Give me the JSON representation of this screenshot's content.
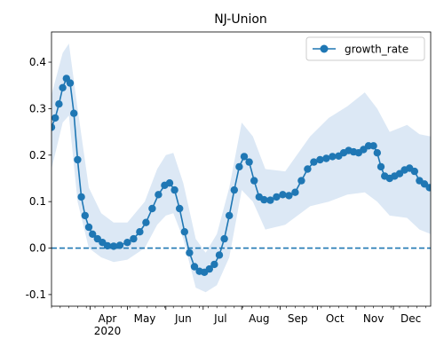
{
  "chart_data": {
    "type": "line",
    "title": "NJ-Union",
    "xlabel": "",
    "ylabel": "",
    "x_tick_labels": [
      "Apr",
      "May",
      "Jun",
      "Jul",
      "Aug",
      "Sep",
      "Oct",
      "Nov",
      "Dec"
    ],
    "x_year_label": "2020",
    "y_tick_labels": [
      "-0.1",
      "0.0",
      "0.1",
      "0.2",
      "0.3",
      "0.4"
    ],
    "y_ticks": [
      -0.1,
      0.0,
      0.1,
      0.2,
      0.3,
      0.4
    ],
    "ylim": [
      -0.125,
      0.465
    ],
    "xlim": [
      "2020-03-01",
      "2020-12-31"
    ],
    "legend_position": "top-right",
    "reference_line": {
      "y": 0.0,
      "style": "dashed"
    },
    "colors": {
      "series": "#1f77b4",
      "band": "#dce8f5"
    },
    "series": [
      {
        "name": "growth_rate",
        "marker": "circle",
        "points": [
          [
            "2020-03-01",
            0.26
          ],
          [
            "2020-03-04",
            0.28
          ],
          [
            "2020-03-07",
            0.31
          ],
          [
            "2020-03-10",
            0.345
          ],
          [
            "2020-03-13",
            0.365
          ],
          [
            "2020-03-16",
            0.355
          ],
          [
            "2020-03-19",
            0.29
          ],
          [
            "2020-03-22",
            0.19
          ],
          [
            "2020-03-25",
            0.11
          ],
          [
            "2020-03-28",
            0.07
          ],
          [
            "2020-03-31",
            0.045
          ],
          [
            "2020-04-03",
            0.03
          ],
          [
            "2020-04-07",
            0.02
          ],
          [
            "2020-04-11",
            0.012
          ],
          [
            "2020-04-15",
            0.005
          ],
          [
            "2020-04-20",
            0.004
          ],
          [
            "2020-04-25",
            0.006
          ],
          [
            "2020-05-01",
            0.012
          ],
          [
            "2020-05-06",
            0.02
          ],
          [
            "2020-05-11",
            0.035
          ],
          [
            "2020-05-16",
            0.055
          ],
          [
            "2020-05-21",
            0.085
          ],
          [
            "2020-05-26",
            0.115
          ],
          [
            "2020-05-31",
            0.135
          ],
          [
            "2020-06-04",
            0.14
          ],
          [
            "2020-06-08",
            0.125
          ],
          [
            "2020-06-12",
            0.085
          ],
          [
            "2020-06-16",
            0.035
          ],
          [
            "2020-06-20",
            -0.01
          ],
          [
            "2020-06-24",
            -0.04
          ],
          [
            "2020-06-28",
            -0.05
          ],
          [
            "2020-07-02",
            -0.052
          ],
          [
            "2020-07-06",
            -0.045
          ],
          [
            "2020-07-10",
            -0.035
          ],
          [
            "2020-07-14",
            -0.015
          ],
          [
            "2020-07-18",
            0.02
          ],
          [
            "2020-07-22",
            0.07
          ],
          [
            "2020-07-26",
            0.125
          ],
          [
            "2020-07-30",
            0.175
          ],
          [
            "2020-08-03",
            0.197
          ],
          [
            "2020-08-07",
            0.185
          ],
          [
            "2020-08-11",
            0.145
          ],
          [
            "2020-08-15",
            0.11
          ],
          [
            "2020-08-19",
            0.104
          ],
          [
            "2020-08-24",
            0.103
          ],
          [
            "2020-08-29",
            0.11
          ],
          [
            "2020-09-03",
            0.115
          ],
          [
            "2020-09-08",
            0.113
          ],
          [
            "2020-09-13",
            0.12
          ],
          [
            "2020-09-18",
            0.145
          ],
          [
            "2020-09-23",
            0.17
          ],
          [
            "2020-09-28",
            0.185
          ],
          [
            "2020-10-03",
            0.19
          ],
          [
            "2020-10-08",
            0.193
          ],
          [
            "2020-10-13",
            0.197
          ],
          [
            "2020-10-18",
            0.198
          ],
          [
            "2020-10-22",
            0.205
          ],
          [
            "2020-10-26",
            0.21
          ],
          [
            "2020-10-30",
            0.207
          ],
          [
            "2020-11-03",
            0.205
          ],
          [
            "2020-11-07",
            0.212
          ],
          [
            "2020-11-11",
            0.22
          ],
          [
            "2020-11-15",
            0.22
          ],
          [
            "2020-11-18",
            0.205
          ],
          [
            "2020-11-21",
            0.175
          ],
          [
            "2020-11-24",
            0.155
          ],
          [
            "2020-11-28",
            0.15
          ],
          [
            "2020-12-02",
            0.155
          ],
          [
            "2020-12-06",
            0.16
          ],
          [
            "2020-12-10",
            0.168
          ],
          [
            "2020-12-14",
            0.172
          ],
          [
            "2020-12-18",
            0.165
          ],
          [
            "2020-12-22",
            0.145
          ],
          [
            "2020-12-26",
            0.138
          ],
          [
            "2020-12-30",
            0.13
          ]
        ],
        "band_upper": [
          [
            "2020-03-01",
            0.33
          ],
          [
            "2020-03-10",
            0.42
          ],
          [
            "2020-03-15",
            0.44
          ],
          [
            "2020-03-22",
            0.3
          ],
          [
            "2020-03-31",
            0.13
          ],
          [
            "2020-04-10",
            0.075
          ],
          [
            "2020-04-20",
            0.055
          ],
          [
            "2020-05-01",
            0.055
          ],
          [
            "2020-05-15",
            0.1
          ],
          [
            "2020-05-25",
            0.17
          ],
          [
            "2020-06-01",
            0.2
          ],
          [
            "2020-06-07",
            0.205
          ],
          [
            "2020-06-15",
            0.14
          ],
          [
            "2020-06-25",
            0.02
          ],
          [
            "2020-07-03",
            -0.01
          ],
          [
            "2020-07-12",
            0.03
          ],
          [
            "2020-07-22",
            0.13
          ],
          [
            "2020-08-01",
            0.27
          ],
          [
            "2020-08-10",
            0.24
          ],
          [
            "2020-08-20",
            0.17
          ],
          [
            "2020-09-05",
            0.165
          ],
          [
            "2020-09-25",
            0.24
          ],
          [
            "2020-10-10",
            0.28
          ],
          [
            "2020-10-25",
            0.305
          ],
          [
            "2020-11-08",
            0.335
          ],
          [
            "2020-11-18",
            0.3
          ],
          [
            "2020-11-28",
            0.25
          ],
          [
            "2020-12-12",
            0.265
          ],
          [
            "2020-12-22",
            0.245
          ],
          [
            "2020-12-31",
            0.24
          ]
        ],
        "band_lower": [
          [
            "2020-03-01",
            0.17
          ],
          [
            "2020-03-10",
            0.27
          ],
          [
            "2020-03-15",
            0.285
          ],
          [
            "2020-03-22",
            0.1
          ],
          [
            "2020-03-31",
            0.0
          ],
          [
            "2020-04-10",
            -0.02
          ],
          [
            "2020-04-20",
            -0.03
          ],
          [
            "2020-05-01",
            -0.025
          ],
          [
            "2020-05-15",
            0.0
          ],
          [
            "2020-05-25",
            0.05
          ],
          [
            "2020-06-01",
            0.07
          ],
          [
            "2020-06-07",
            0.075
          ],
          [
            "2020-06-15",
            0.02
          ],
          [
            "2020-06-25",
            -0.085
          ],
          [
            "2020-07-03",
            -0.095
          ],
          [
            "2020-07-12",
            -0.08
          ],
          [
            "2020-07-22",
            -0.02
          ],
          [
            "2020-08-01",
            0.125
          ],
          [
            "2020-08-10",
            0.1
          ],
          [
            "2020-08-20",
            0.04
          ],
          [
            "2020-09-05",
            0.05
          ],
          [
            "2020-09-25",
            0.09
          ],
          [
            "2020-10-10",
            0.1
          ],
          [
            "2020-10-25",
            0.115
          ],
          [
            "2020-11-08",
            0.12
          ],
          [
            "2020-11-18",
            0.1
          ],
          [
            "2020-11-28",
            0.07
          ],
          [
            "2020-12-12",
            0.065
          ],
          [
            "2020-12-22",
            0.04
          ],
          [
            "2020-12-31",
            0.03
          ]
        ]
      }
    ]
  }
}
